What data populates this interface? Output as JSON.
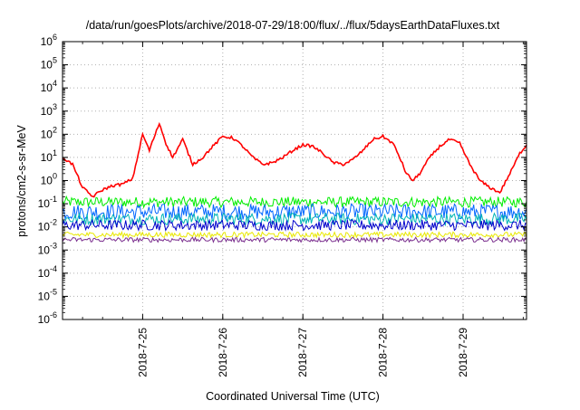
{
  "chart_data": {
    "type": "line",
    "title": "/data/run/goesPlots/archive/2018-07-29/18:00/flux/../flux/5daysEarthDataFluxes.txt",
    "xlabel": "Coordinated Universal Time (UTC)",
    "ylabel": "protons/cm2-s-sr-MeV",
    "y_scale": "log",
    "ylim": [
      1e-06,
      1000000.0
    ],
    "y_ticks": [
      {
        "base": "10",
        "exp": "-6",
        "value": 1e-06
      },
      {
        "base": "10",
        "exp": "-5",
        "value": 1e-05
      },
      {
        "base": "10",
        "exp": "-4",
        "value": 0.0001
      },
      {
        "base": "10",
        "exp": "-3",
        "value": 0.001
      },
      {
        "base": "10",
        "exp": "-2",
        "value": 0.01
      },
      {
        "base": "10",
        "exp": "-1",
        "value": 0.1
      },
      {
        "base": "10",
        "exp": "0",
        "value": 1.0
      },
      {
        "base": "10",
        "exp": "1",
        "value": 10.0
      },
      {
        "base": "10",
        "exp": "2",
        "value": 100.0
      },
      {
        "base": "10",
        "exp": "3",
        "value": 1000.0
      },
      {
        "base": "10",
        "exp": "4",
        "value": 10000.0
      },
      {
        "base": "10",
        "exp": "5",
        "value": 100000.0
      },
      {
        "base": "10",
        "exp": "6",
        "value": 1000000.0
      }
    ],
    "x_range": [
      "2018-07-24 00:00",
      "2018-07-29 19:00"
    ],
    "x_tick_labels": [
      "2018-7-25",
      "2018-7-26",
      "2018-7-27",
      "2018-7-28",
      "2018-7-29"
    ],
    "x_ticks": [
      "2018-07-25",
      "2018-07-26",
      "2018-07-27",
      "2018-07-28",
      "2018-07-29"
    ],
    "grid": true,
    "legend": "none",
    "series": [
      {
        "color": "#ff0000",
        "x": [
          "2018-07-24 00:00",
          "2018-07-24 03:00",
          "2018-07-24 06:00",
          "2018-07-24 09:00",
          "2018-07-24 12:00",
          "2018-07-24 15:00",
          "2018-07-24 18:00",
          "2018-07-24 21:00",
          "2018-07-25 00:00",
          "2018-07-25 02:00",
          "2018-07-25 05:00",
          "2018-07-25 07:00",
          "2018-07-25 09:00",
          "2018-07-25 12:00",
          "2018-07-25 15:00",
          "2018-07-25 18:00",
          "2018-07-25 21:00",
          "2018-07-26 00:00",
          "2018-07-26 03:00",
          "2018-07-26 06:00",
          "2018-07-26 09:00",
          "2018-07-26 12:00",
          "2018-07-26 15:00",
          "2018-07-26 18:00",
          "2018-07-26 21:00",
          "2018-07-27 00:00",
          "2018-07-27 03:00",
          "2018-07-27 06:00",
          "2018-07-27 09:00",
          "2018-07-27 12:00",
          "2018-07-27 15:00",
          "2018-07-27 18:00",
          "2018-07-27 21:00",
          "2018-07-28 00:00",
          "2018-07-28 03:00",
          "2018-07-28 05:00",
          "2018-07-28 07:00",
          "2018-07-28 09:00",
          "2018-07-28 11:00",
          "2018-07-28 14:00",
          "2018-07-28 17:00",
          "2018-07-28 20:00",
          "2018-07-28 23:00",
          "2018-07-29 02:00",
          "2018-07-29 05:00",
          "2018-07-29 08:00",
          "2018-07-29 11:00",
          "2018-07-29 14:00",
          "2018-07-29 17:00",
          "2018-07-29 19:00"
        ],
        "values": [
          10,
          5,
          0.5,
          0.2,
          0.4,
          0.6,
          0.7,
          1.2,
          100,
          20,
          300,
          40,
          10,
          60,
          5,
          10,
          30,
          80,
          70,
          30,
          10,
          5,
          6,
          10,
          20,
          35,
          30,
          15,
          6,
          5,
          8,
          20,
          60,
          80,
          40,
          10,
          2,
          1,
          2,
          10,
          30,
          60,
          40,
          5,
          1,
          0.5,
          0.3,
          2,
          15,
          35
        ]
      },
      {
        "color": "#00ee00",
        "values": [
          0.07,
          0.2
        ],
        "band": true
      },
      {
        "color": "#0066ff",
        "values": [
          0.02,
          0.1
        ],
        "band": true
      },
      {
        "color": "#00b5b5",
        "values": [
          0.012,
          0.04
        ],
        "band": true
      },
      {
        "color": "#0000cc",
        "values": [
          0.007,
          0.02
        ],
        "band": true
      },
      {
        "color": "#e8e800",
        "values": [
          0.0035,
          0.006
        ],
        "band": true
      },
      {
        "color": "#7a2e8e",
        "values": [
          0.0022,
          0.0035
        ],
        "band": true
      }
    ]
  }
}
